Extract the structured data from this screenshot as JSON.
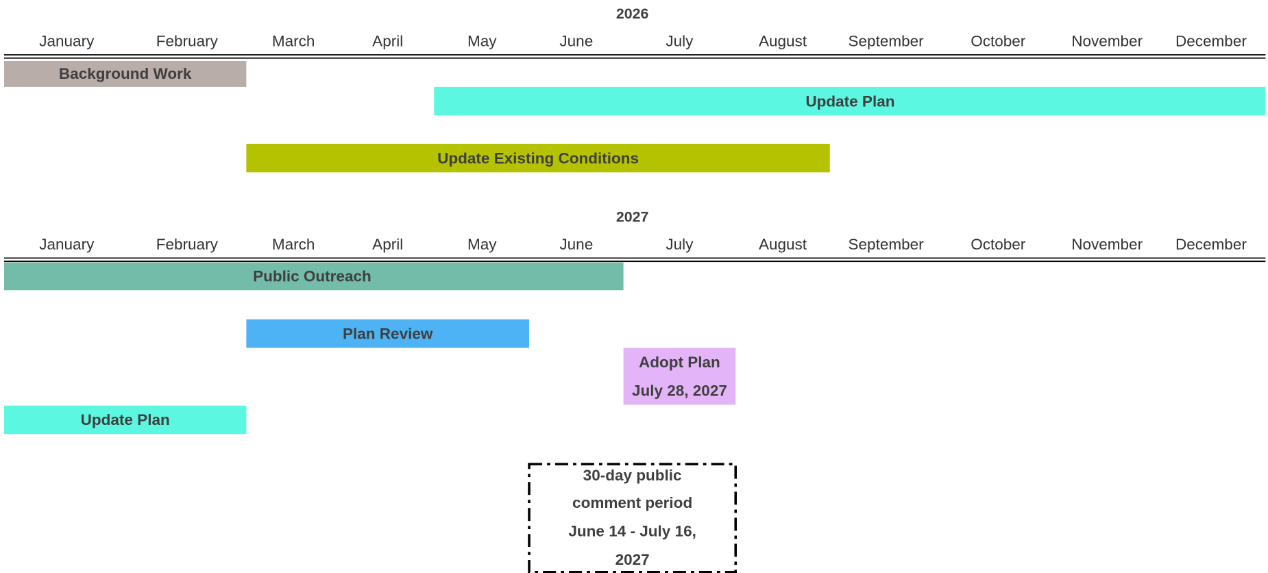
{
  "timelines": [
    {
      "year": "2026",
      "months": [
        "January",
        "February",
        "March",
        "April",
        "May",
        "June",
        "July",
        "August",
        "September",
        "October",
        "November",
        "December"
      ],
      "tasks": [
        "Background Work",
        "Update Plan",
        "Update Existing Conditions"
      ]
    },
    {
      "year": "2027",
      "months": [
        "January",
        "February",
        "March",
        "April",
        "May",
        "June",
        "July",
        "August",
        "September",
        "October",
        "November",
        "December"
      ],
      "tasks": [
        "Public Outreach",
        "Plan Review",
        "Adopt Plan",
        "July 28, 2027",
        "Update Plan"
      ]
    }
  ],
  "note": [
    "30-day public",
    "comment period",
    "June 14 - July 16,",
    "2027"
  ]
}
